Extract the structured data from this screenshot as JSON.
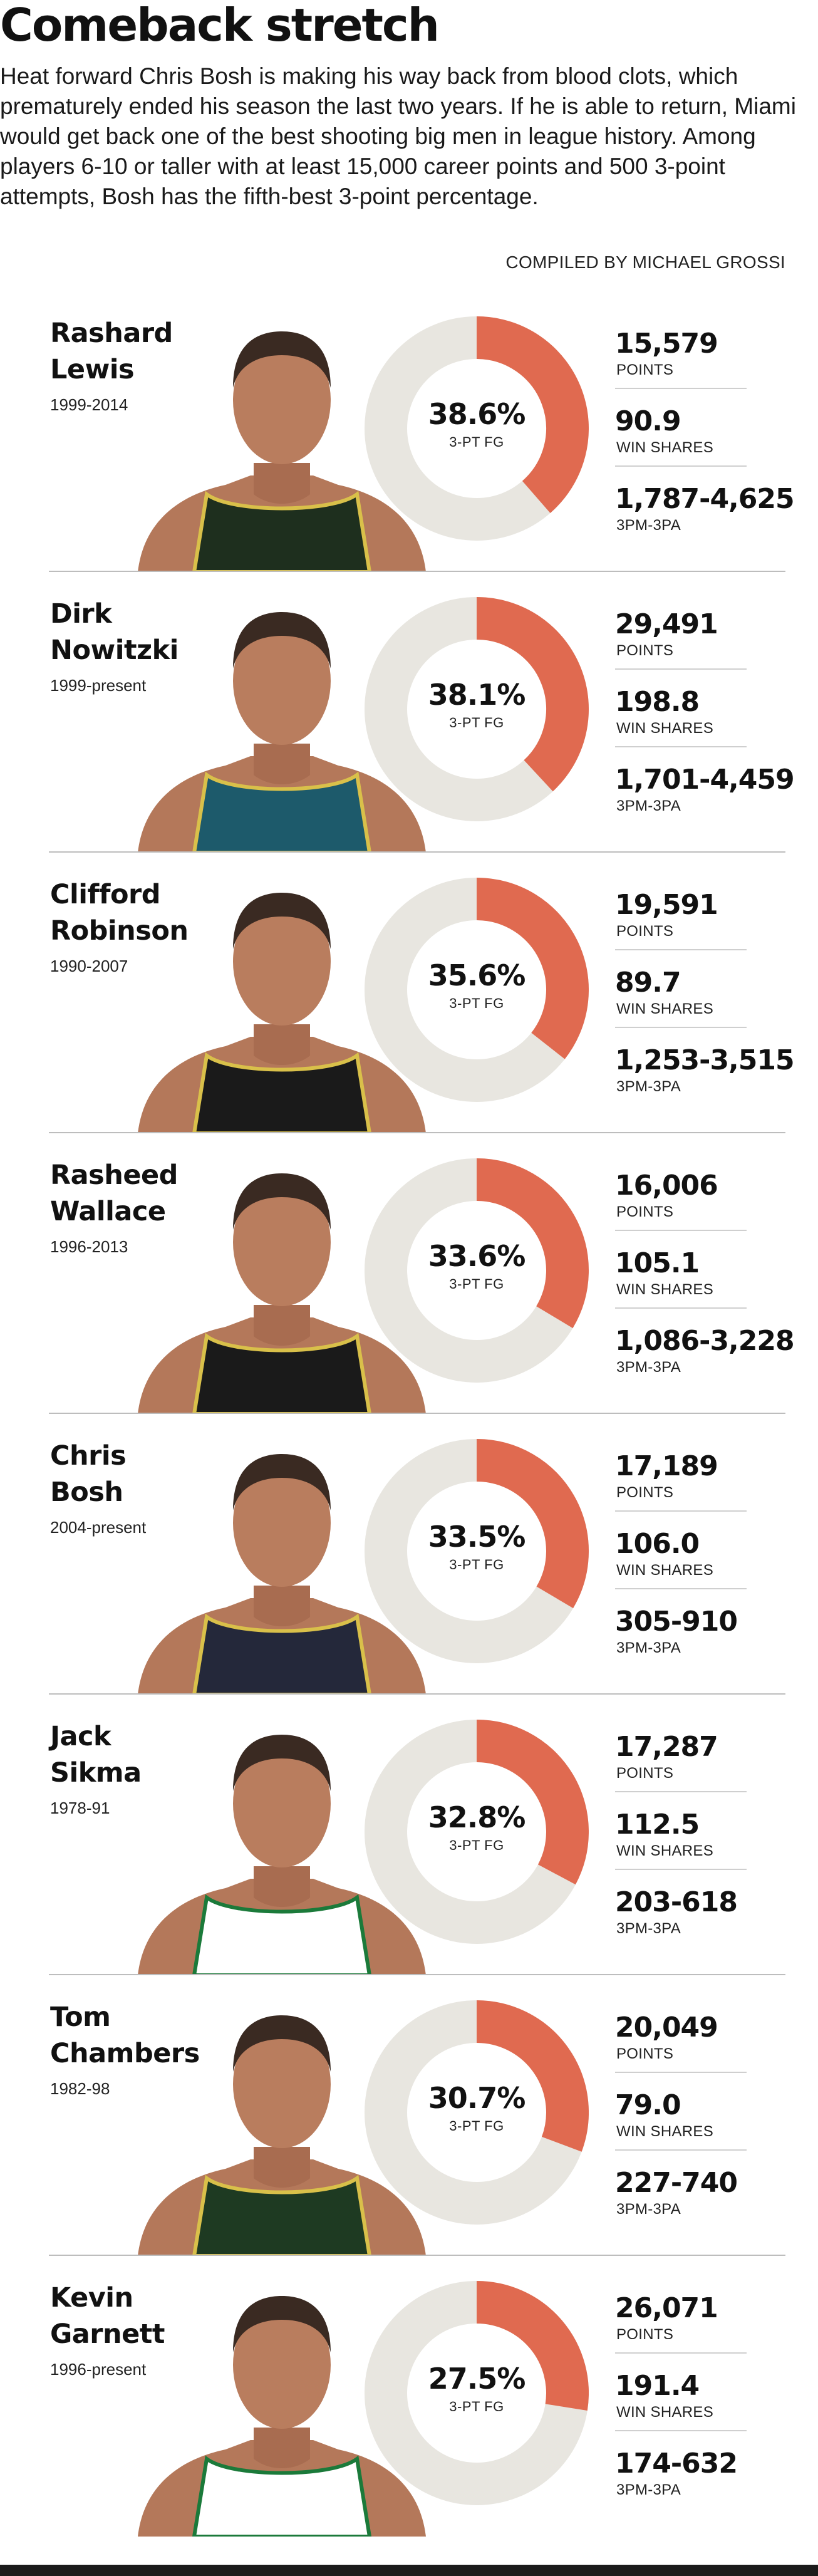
{
  "header": {
    "title": "Comeback stretch",
    "intro": "Heat forward Chris Bosh is making his way back from blood clots, which prematurely ended his season the last two years. If he is able to return, Miami would get back one of the best shooting big men in league history. Among players 6-10 or taller with at least 15,000 career points and 500 3-point attempts, Bosh has the fifth-best 3-point percentage.",
    "credit": "COMPILED BY MICHAEL GROSSI"
  },
  "colors": {
    "accent": "#e06a50",
    "track": "#e8e6e0",
    "jersey": {
      "lewis": "#1e2f1e",
      "nowitzki": "#1d5a6b",
      "robinson": "#1a1a1a",
      "wallace": "#1a1a1a",
      "bosh": "#24283a",
      "sikma": "#ffffff",
      "chambers": "#1e3a22",
      "garnett": "#ffffff"
    }
  },
  "labels": {
    "pct": "3-PT FG",
    "points": "POINTS",
    "win_shares": "WIN SHARES",
    "tpm_tpa": "3PM-3PA"
  },
  "chart_data": {
    "type": "pie",
    "title": "Comeback stretch",
    "value_label": "3-PT FG",
    "series": [
      {
        "id": "lewis",
        "name": "Rashard\nLewis",
        "years": "1999-2014",
        "pct_display": "38.6%",
        "pct": 38.6,
        "points": "15,579",
        "win_shares": "90.9",
        "tpm_tpa": "1,787-4,625"
      },
      {
        "id": "nowitzki",
        "name": "Dirk\nNowitzki",
        "years": "1999-present",
        "pct_display": "38.1%",
        "pct": 38.1,
        "points": "29,491",
        "win_shares": "198.8",
        "tpm_tpa": "1,701-4,459"
      },
      {
        "id": "robinson",
        "name": "Clifford\nRobinson",
        "years": "1990-2007",
        "pct_display": "35.6%",
        "pct": 35.6,
        "points": "19,591",
        "win_shares": "89.7",
        "tpm_tpa": "1,253-3,515"
      },
      {
        "id": "wallace",
        "name": "Rasheed\nWallace",
        "years": "1996-2013",
        "pct_display": "33.6%",
        "pct": 33.6,
        "points": "16,006",
        "win_shares": "105.1",
        "tpm_tpa": "1,086-3,228"
      },
      {
        "id": "bosh",
        "name": "Chris\nBosh",
        "years": "2004-present",
        "pct_display": "33.5%",
        "pct": 33.5,
        "points": "17,189",
        "win_shares": "106.0",
        "tpm_tpa": "305-910"
      },
      {
        "id": "sikma",
        "name": "Jack\nSikma",
        "years": "1978-91",
        "pct_display": "32.8%",
        "pct": 32.8,
        "points": "17,287",
        "win_shares": "112.5",
        "tpm_tpa": "203-618"
      },
      {
        "id": "chambers",
        "name": "Tom\nChambers",
        "years": "1982-98",
        "pct_display": "30.7%",
        "pct": 30.7,
        "points": "20,049",
        "win_shares": "79.0",
        "tpm_tpa": "227-740"
      },
      {
        "id": "garnett",
        "name": "Kevin\nGarnett",
        "years": "1996-present",
        "pct_display": "27.5%",
        "pct": 27.5,
        "points": "26,071",
        "win_shares": "191.4",
        "tpm_tpa": "174-632"
      }
    ]
  }
}
